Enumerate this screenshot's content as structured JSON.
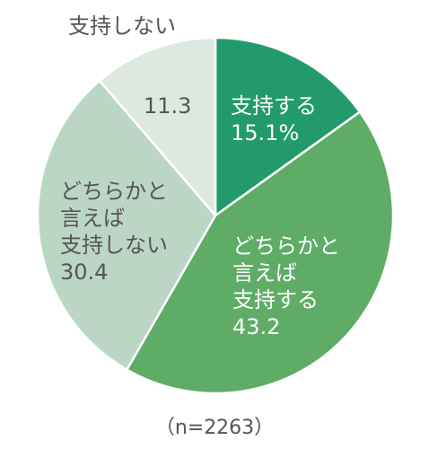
{
  "chart_data": {
    "type": "pie",
    "slices": [
      {
        "label_lines": [
          "支持する"
        ],
        "value": 15.1,
        "value_text": "15.1%",
        "color": "#239A6C",
        "text_color": "#ffffff"
      },
      {
        "label_lines": [
          "どちらかと",
          "言えば",
          "支持する"
        ],
        "value": 43.2,
        "value_text": "43.2",
        "color": "#5FAC66",
        "text_color": "#ffffff"
      },
      {
        "label_lines": [
          "どちらかと",
          "言えば",
          "支持しない"
        ],
        "value": 30.4,
        "value_text": "30.4",
        "color": "#BCD6C5",
        "text_color": "#555555"
      },
      {
        "label_lines": [
          "支持しない"
        ],
        "value": 11.3,
        "value_text": "11.3",
        "color": "#DDE8E0",
        "text_color": "#555555"
      }
    ],
    "start_angle": "12 o'clock",
    "direction": "clockwise",
    "legend": "none"
  },
  "note": "（n=2263）"
}
